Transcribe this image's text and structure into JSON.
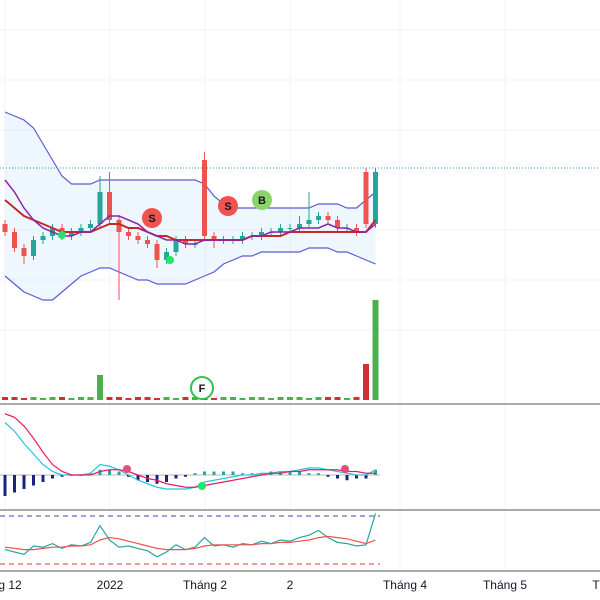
{
  "chart_data": {
    "type": "candlestick",
    "open": [
      44,
      42,
      38,
      36,
      40,
      41,
      43,
      41,
      42,
      43,
      44,
      52,
      45,
      42,
      41,
      40,
      39,
      35,
      37,
      40,
      39,
      60,
      41,
      40,
      40,
      40,
      41,
      41,
      42,
      42,
      43,
      43,
      44,
      45,
      46,
      45,
      43,
      43,
      57,
      44
    ],
    "high": [
      45,
      43,
      39,
      41,
      42,
      44,
      44,
      43,
      44,
      45,
      56,
      57,
      46,
      43,
      42,
      41,
      40,
      38,
      41,
      41,
      40,
      62,
      42,
      41,
      41,
      42,
      42,
      43,
      43,
      44,
      44,
      46,
      52,
      47,
      47,
      46,
      44,
      44,
      58,
      58
    ],
    "low": [
      41,
      37,
      34,
      35,
      39,
      40,
      40,
      40,
      41,
      42,
      43,
      44,
      25,
      40,
      39,
      38,
      33,
      34,
      36,
      38,
      38,
      40,
      38,
      39,
      39,
      39,
      40,
      40,
      41,
      41,
      42,
      42,
      43,
      44,
      44,
      42,
      42,
      41,
      43,
      43
    ],
    "close": [
      42,
      38,
      36,
      40,
      41,
      43,
      41,
      42,
      43,
      44,
      52,
      45,
      42,
      41,
      40,
      39,
      35,
      37,
      40,
      39,
      39,
      41,
      40,
      40,
      40,
      41,
      41,
      42,
      42,
      43,
      43,
      44,
      45,
      46,
      45,
      43,
      43,
      42,
      44,
      57
    ],
    "ylim": [
      0,
      100
    ],
    "bands": {
      "upper": [
        72,
        71,
        70,
        68,
        64,
        60,
        56,
        54,
        54,
        54,
        55,
        55,
        55,
        55,
        55,
        55,
        55,
        55,
        55,
        55,
        55,
        54,
        51,
        49,
        48,
        48,
        48,
        48,
        48,
        48,
        48,
        48,
        48,
        49,
        49,
        49,
        48,
        48,
        50,
        52
      ],
      "middle": [
        50,
        48,
        46,
        45,
        44,
        43,
        42,
        42,
        42,
        42,
        43,
        44,
        44,
        43,
        43,
        42,
        41,
        41,
        40,
        40,
        40,
        40,
        40,
        40,
        40,
        40,
        41,
        41,
        41,
        41,
        42,
        42,
        42,
        42,
        42,
        42,
        42,
        42,
        42,
        45
      ],
      "lower": [
        31,
        29,
        27,
        26,
        25,
        25,
        27,
        29,
        31,
        32,
        33,
        33,
        32,
        31,
        30,
        30,
        29,
        29,
        29,
        29,
        30,
        31,
        32,
        34,
        35,
        36,
        36,
        37,
        37,
        37,
        37,
        37,
        38,
        38,
        38,
        37,
        37,
        36,
        35,
        34
      ],
      "ma": [
        55,
        52,
        48,
        45,
        43,
        42,
        41,
        41,
        42,
        42,
        44,
        46,
        46,
        45,
        44,
        42,
        41,
        40,
        40,
        39,
        39,
        40,
        40,
        40,
        40,
        40,
        41,
        41,
        42,
        42,
        42,
        43,
        43,
        43,
        44,
        43,
        43,
        42,
        42,
        44
      ]
    },
    "last_price": 58,
    "volume": {
      "values": [
        3,
        3,
        2,
        3,
        2,
        3,
        3,
        2,
        3,
        3,
        25,
        3,
        3,
        2,
        3,
        3,
        2,
        3,
        2,
        3,
        3,
        6,
        2,
        3,
        3,
        2,
        3,
        3,
        2,
        3,
        3,
        3,
        2,
        3,
        3,
        3,
        2,
        3,
        36,
        100
      ],
      "ylim": [
        0,
        100
      ]
    },
    "macd": {
      "hist": [
        -1.2,
        -1,
        -0.8,
        -0.6,
        -0.4,
        -0.2,
        -0.1,
        0,
        0,
        0.1,
        0.3,
        0.3,
        0.2,
        -0.1,
        -0.3,
        -0.4,
        -0.5,
        -0.4,
        -0.2,
        -0.1,
        0.1,
        0.2,
        0.2,
        0.2,
        0.2,
        0.1,
        0.1,
        0.1,
        0.2,
        0.2,
        0.2,
        0.2,
        0.1,
        0.1,
        -0.1,
        -0.2,
        -0.3,
        -0.2,
        -0.2,
        0.3
      ],
      "macd": [
        3,
        2.5,
        1.8,
        1.2,
        0.6,
        0.2,
        0,
        0,
        0,
        0.1,
        0.6,
        0.5,
        0.3,
        0,
        -0.3,
        -0.5,
        -0.7,
        -0.8,
        -0.8,
        -0.8,
        -0.7,
        -0.4,
        -0.3,
        -0.2,
        -0.1,
        0,
        0,
        0.1,
        0.1,
        0.2,
        0.2,
        0.3,
        0.4,
        0.4,
        0.3,
        0.2,
        0.1,
        0,
        0,
        0.3
      ],
      "signal": [
        3.5,
        3.3,
        2.8,
        2.1,
        1.3,
        0.6,
        0.2,
        0,
        0,
        0,
        0.2,
        0.3,
        0.3,
        0.2,
        0,
        -0.2,
        -0.3,
        -0.5,
        -0.6,
        -0.7,
        -0.7,
        -0.6,
        -0.5,
        -0.4,
        -0.3,
        -0.2,
        -0.1,
        0,
        0.1,
        0.1,
        0.2,
        0.2,
        0.3,
        0.3,
        0.3,
        0.3,
        0.2,
        0.2,
        0.1,
        0.1
      ],
      "ylim": [
        -2,
        4
      ]
    },
    "rsi": {
      "values": [
        42,
        40,
        38,
        45,
        44,
        47,
        43,
        46,
        45,
        48,
        62,
        50,
        44,
        45,
        43,
        41,
        36,
        40,
        46,
        42,
        44,
        52,
        45,
        46,
        44,
        47,
        46,
        49,
        47,
        50,
        49,
        52,
        54,
        58,
        52,
        48,
        47,
        45,
        46,
        72
      ],
      "ma": [
        44,
        43,
        42,
        42,
        43,
        44,
        44,
        45,
        45,
        46,
        50,
        52,
        51,
        49,
        47,
        45,
        43,
        42,
        42,
        42,
        43,
        45,
        46,
        46,
        46,
        46,
        46,
        47,
        47,
        48,
        48,
        49,
        50,
        52,
        53,
        52,
        51,
        49,
        47,
        50
      ],
      "levels": [
        70,
        30
      ],
      "ylim": [
        25,
        75
      ]
    },
    "xtick_labels": [
      "g 12",
      "2022",
      "Tháng 2",
      "2",
      "Tháng 4",
      "Tháng 5",
      "T"
    ],
    "signals": [
      "S",
      "S",
      "B",
      "F"
    ]
  }
}
